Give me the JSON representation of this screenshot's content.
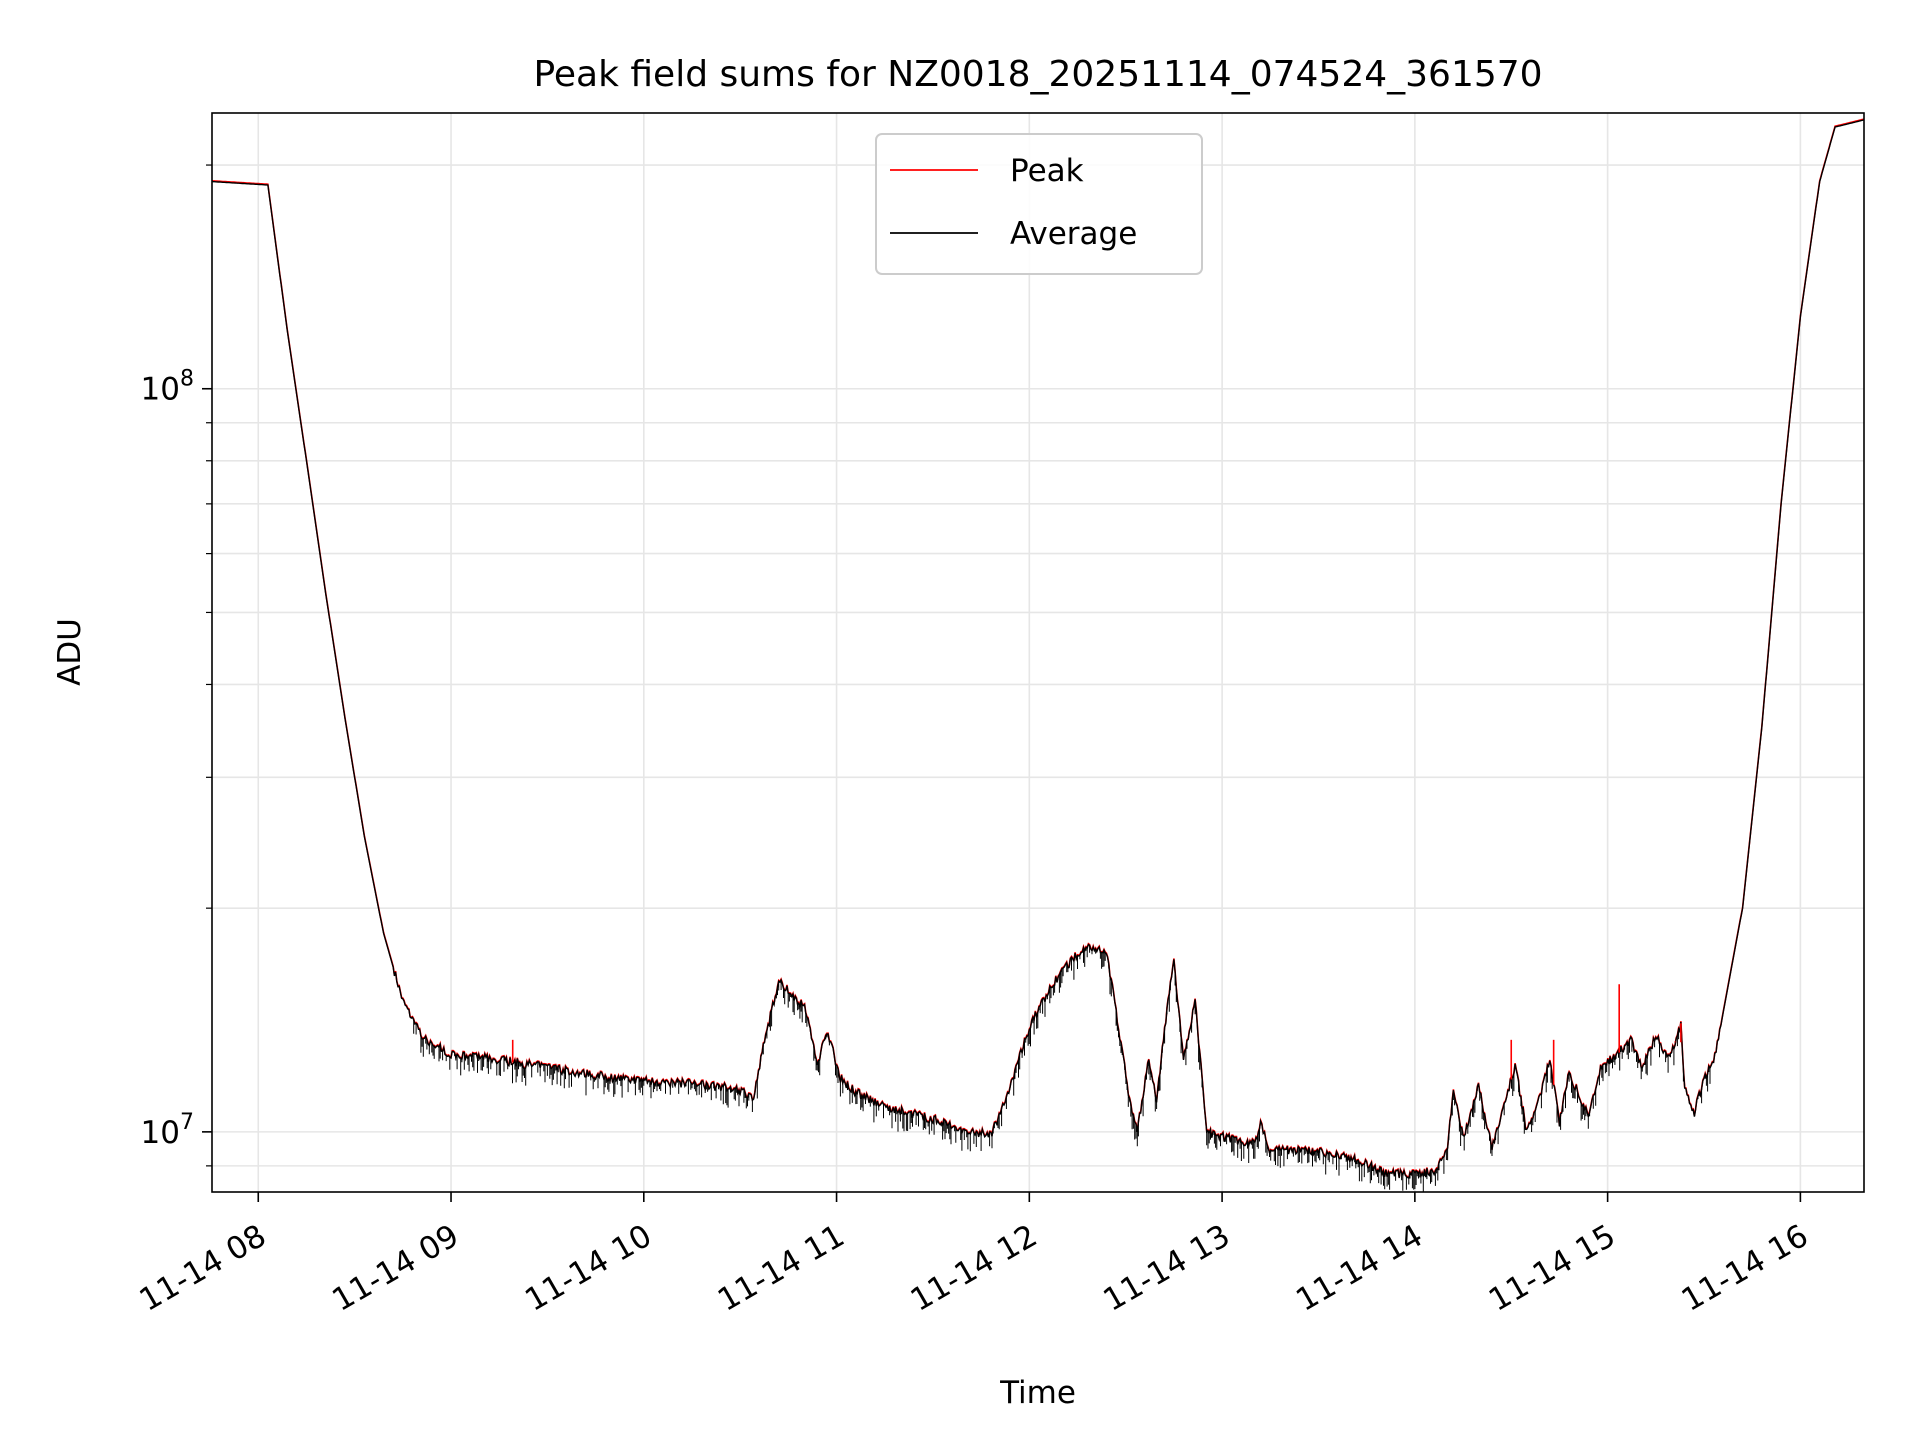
{
  "chart_data": {
    "type": "line",
    "title": "Peak field sums for NZ0018_20251114_074524_361570",
    "xlabel": "Time",
    "ylabel": "ADU",
    "yscale": "log",
    "ylim": [
      8300000,
      235000000
    ],
    "xlim_hours": [
      7.76,
      16.33
    ],
    "x_unit": "hour of day (2025-11-14)",
    "grid": true,
    "legend_position": "upper-center",
    "x_ticks": [
      {
        "value": 8,
        "label": "11-14 08"
      },
      {
        "value": 9,
        "label": "11-14 09"
      },
      {
        "value": 10,
        "label": "11-14 10"
      },
      {
        "value": 11,
        "label": "11-14 11"
      },
      {
        "value": 12,
        "label": "11-14 12"
      },
      {
        "value": 13,
        "label": "11-14 13"
      },
      {
        "value": 14,
        "label": "11-14 14"
      },
      {
        "value": 15,
        "label": "11-14 15"
      },
      {
        "value": 16,
        "label": "11-14 16"
      }
    ],
    "y_ticks": [
      {
        "value": 10000000,
        "base": "10",
        "exp": "7"
      },
      {
        "value": 100000000,
        "base": "10",
        "exp": "8"
      }
    ],
    "series": [
      {
        "name": "Peak",
        "color": "#ff0000",
        "role": "peak"
      },
      {
        "name": "Average",
        "color": "#000000",
        "role": "average"
      }
    ],
    "average_points": [
      [
        7.76,
        190000000
      ],
      [
        8.05,
        188000000
      ],
      [
        8.15,
        120000000
      ],
      [
        8.25,
        80000000
      ],
      [
        8.35,
        53000000
      ],
      [
        8.45,
        36000000
      ],
      [
        8.55,
        25000000
      ],
      [
        8.65,
        18500000
      ],
      [
        8.75,
        15000000
      ],
      [
        8.85,
        13400000
      ],
      [
        9.0,
        12700000
      ],
      [
        9.25,
        12500000
      ],
      [
        9.5,
        12200000
      ],
      [
        9.75,
        11900000
      ],
      [
        10.0,
        11700000
      ],
      [
        10.25,
        11600000
      ],
      [
        10.5,
        11400000
      ],
      [
        10.57,
        11100000
      ],
      [
        10.62,
        13000000
      ],
      [
        10.7,
        16000000
      ],
      [
        10.78,
        15200000
      ],
      [
        10.84,
        14600000
      ],
      [
        10.9,
        12300000
      ],
      [
        10.95,
        13700000
      ],
      [
        11.02,
        11800000
      ],
      [
        11.1,
        11300000
      ],
      [
        11.25,
        10800000
      ],
      [
        11.5,
        10400000
      ],
      [
        11.7,
        10000000
      ],
      [
        11.8,
        9900000
      ],
      [
        11.9,
        11500000
      ],
      [
        12.0,
        13800000
      ],
      [
        12.1,
        15500000
      ],
      [
        12.2,
        16800000
      ],
      [
        12.3,
        17800000
      ],
      [
        12.4,
        17500000
      ],
      [
        12.45,
        14500000
      ],
      [
        12.52,
        11000000
      ],
      [
        12.56,
        10000000
      ],
      [
        12.62,
        12500000
      ],
      [
        12.66,
        11000000
      ],
      [
        12.72,
        15000000
      ],
      [
        12.75,
        17000000
      ],
      [
        12.8,
        12500000
      ],
      [
        12.86,
        15000000
      ],
      [
        12.92,
        10000000
      ],
      [
        12.96,
        9900000
      ],
      [
        13.1,
        9700000
      ],
      [
        13.17,
        9650000
      ],
      [
        13.2,
        10300000
      ],
      [
        13.24,
        9500000
      ],
      [
        13.5,
        9400000
      ],
      [
        13.7,
        9150000
      ],
      [
        13.85,
        8800000
      ],
      [
        14.0,
        8750000
      ],
      [
        14.1,
        8850000
      ],
      [
        14.17,
        9500000
      ],
      [
        14.2,
        11500000
      ],
      [
        14.25,
        9800000
      ],
      [
        14.33,
        11500000
      ],
      [
        14.4,
        9500000
      ],
      [
        14.47,
        11000000
      ],
      [
        14.52,
        12300000
      ],
      [
        14.58,
        10000000
      ],
      [
        14.65,
        11200000
      ],
      [
        14.7,
        12500000
      ],
      [
        14.75,
        10300000
      ],
      [
        14.8,
        12000000
      ],
      [
        14.9,
        10500000
      ],
      [
        14.97,
        12300000
      ],
      [
        15.05,
        12700000
      ],
      [
        15.12,
        13300000
      ],
      [
        15.18,
        12200000
      ],
      [
        15.25,
        13500000
      ],
      [
        15.32,
        12500000
      ],
      [
        15.38,
        14000000
      ],
      [
        15.4,
        11500000
      ],
      [
        15.45,
        10600000
      ],
      [
        15.5,
        11800000
      ],
      [
        15.55,
        12500000
      ],
      [
        15.6,
        14500000
      ],
      [
        15.7,
        20000000
      ],
      [
        15.8,
        35000000
      ],
      [
        15.9,
        70000000
      ],
      [
        16.0,
        125000000
      ],
      [
        16.1,
        190000000
      ],
      [
        16.18,
        225000000
      ],
      [
        16.33,
        230000000
      ]
    ],
    "peak_spikes": [
      {
        "x": 9.32,
        "y": 13300000
      },
      {
        "x": 14.5,
        "y": 13300000
      },
      {
        "x": 14.72,
        "y": 13300000
      },
      {
        "x": 15.06,
        "y": 15800000
      },
      {
        "x": 15.35,
        "y": 13200000
      },
      {
        "x": 15.38,
        "y": 13200000
      }
    ]
  }
}
